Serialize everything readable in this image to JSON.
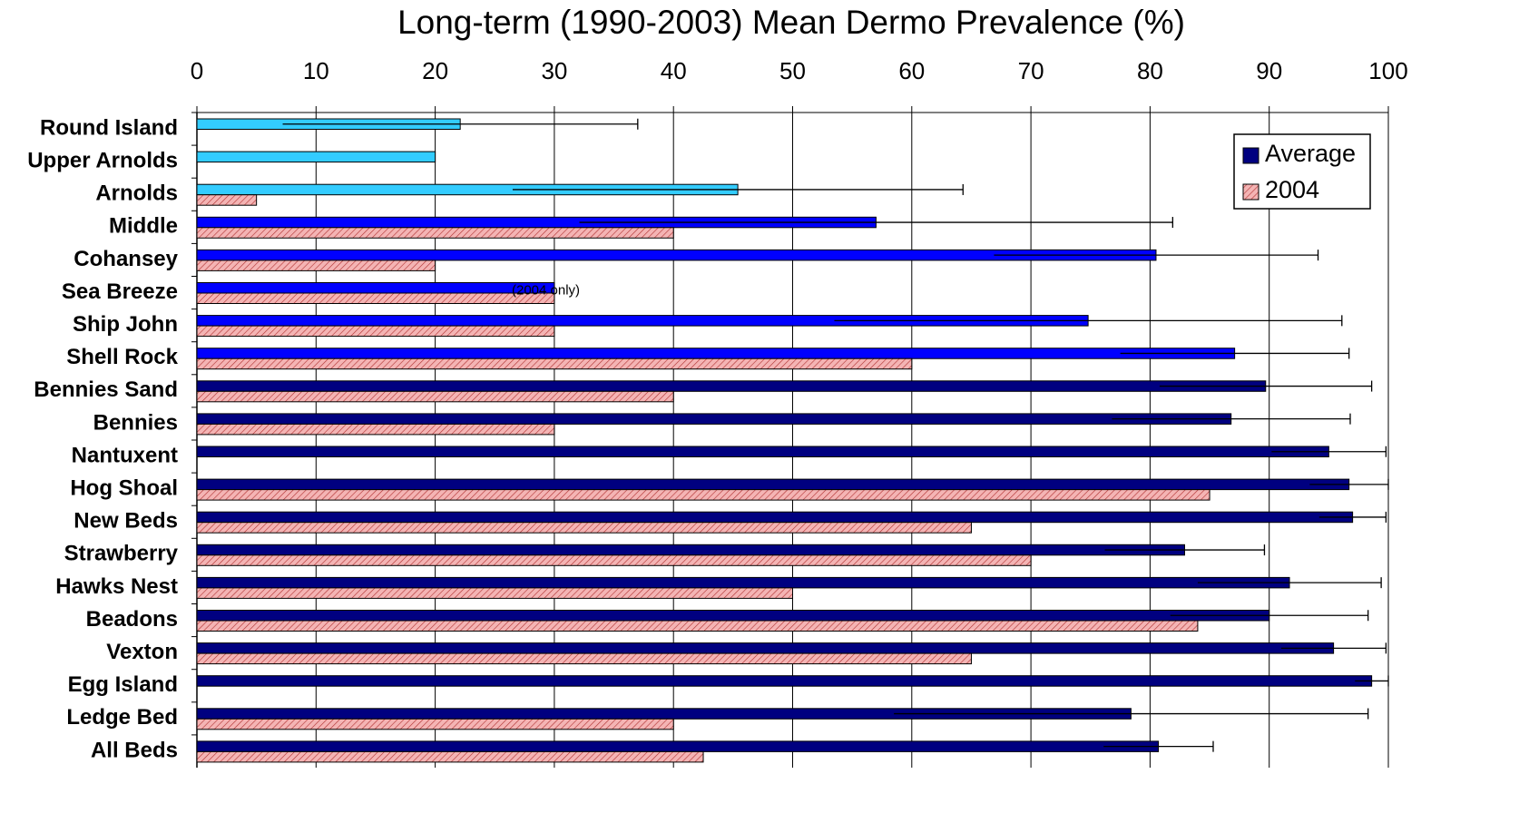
{
  "chart_data": {
    "type": "hbar",
    "title": "Long-term (1990-2003) Mean Dermo Prevalence (%)",
    "annotation": "(2004 only)",
    "categories": [
      "Round Island",
      "Upper Arnolds",
      "Arnolds",
      "Middle",
      "Cohansey",
      "Sea Breeze",
      "Ship John",
      "Shell Rock",
      "Bennies Sand",
      "Bennies",
      "Nantuxent",
      "Hog Shoal",
      "New Beds",
      "Strawberry",
      "Hawks Nest",
      "Beadons",
      "Vexton",
      "Egg Island",
      "Ledge Bed",
      "All Beds"
    ],
    "series": [
      {
        "name": "Average",
        "color": "#000080",
        "colors": [
          "#33ccff",
          "#33ccff",
          "#33ccff",
          "#0000ff",
          "#0000ff",
          "#0000ff",
          "#0000ff",
          "#0000ff",
          "#000080",
          "#000080",
          "#000080",
          "#000080",
          "#000080",
          "#000080",
          "#000080",
          "#000080",
          "#000080",
          "#000080",
          "#000080",
          "#000080"
        ],
        "values": [
          22.1,
          20.0,
          45.4,
          57.0,
          80.5,
          30.0,
          74.8,
          87.1,
          89.7,
          86.8,
          95.0,
          96.7,
          97.0,
          82.9,
          91.7,
          90.0,
          95.4,
          98.6,
          78.4,
          80.7
        ],
        "errors": [
          14.9,
          null,
          18.9,
          24.9,
          13.6,
          null,
          21.3,
          9.6,
          8.9,
          10.0,
          4.8,
          3.3,
          2.8,
          6.7,
          7.7,
          8.3,
          4.4,
          1.4,
          19.9,
          4.6
        ]
      },
      {
        "name": "2004",
        "color": "#f4b4b4",
        "hatch": true,
        "values": [
          null,
          null,
          5.0,
          40,
          20,
          30,
          30,
          60,
          40,
          30,
          null,
          85,
          65,
          70,
          50,
          84,
          65,
          null,
          40,
          42.5
        ]
      }
    ],
    "xlim": [
      0,
      100
    ],
    "xticks": [
      0,
      10,
      20,
      30,
      40,
      50,
      60,
      70,
      80,
      90,
      100
    ],
    "grid": true,
    "legend": "top-right"
  }
}
